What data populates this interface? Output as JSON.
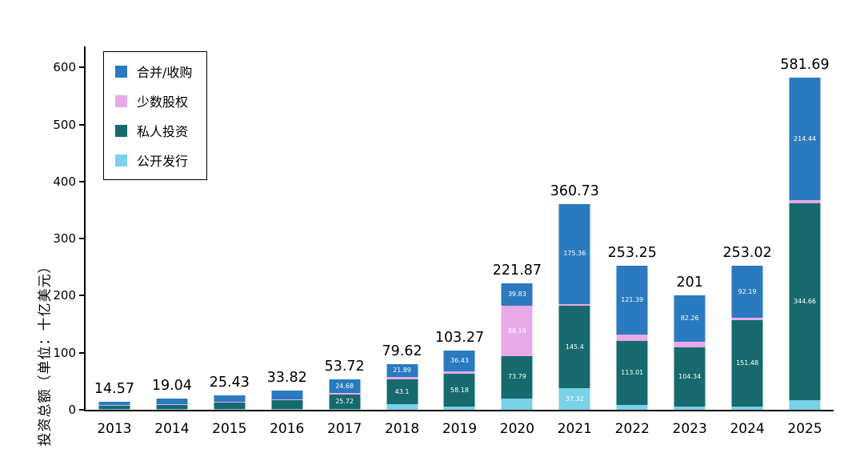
{
  "chart_data": {
    "type": "bar",
    "stacked": true,
    "title": "",
    "xlabel": "",
    "ylabel": "投资总额（单位：十亿美元）",
    "ymax": 637,
    "ylim": [
      0,
      637
    ],
    "yticks": [
      0,
      100,
      200,
      300,
      400,
      500,
      600
    ],
    "grid": false,
    "legend_position": "upper-left-inside",
    "categories": [
      "2013",
      "2014",
      "2015",
      "2016",
      "2017",
      "2018",
      "2019",
      "2020",
      "2021",
      "2022",
      "2023",
      "2024",
      "2025"
    ],
    "totals": [
      "14.57",
      "19.04",
      "25.43",
      "33.82",
      "53.72",
      "79.62",
      "103.27",
      "221.87",
      "360.73",
      "253.25",
      "201",
      "253.02",
      "581.69"
    ],
    "legend": [
      {
        "label": "合并/收购",
        "color": "#2a7abf"
      },
      {
        "label": "少数股权",
        "color": "#e8a9e9"
      },
      {
        "label": "私人投资",
        "color": "#166a6d"
      },
      {
        "label": "公开发行",
        "color": "#79d2e9"
      }
    ],
    "series": [
      {
        "name": "公开发行",
        "color": "#79d2e9",
        "values": [
          1,
          1,
          1.5,
          1.5,
          1.5,
          10,
          5,
          20.06,
          37.32,
          8,
          5,
          5,
          17
        ],
        "labels": [
          null,
          null,
          null,
          null,
          null,
          null,
          null,
          null,
          "37.32",
          null,
          null,
          null,
          null
        ]
      },
      {
        "name": "私人投资",
        "color": "#166a6d",
        "values": [
          7,
          9,
          12,
          16,
          25.72,
          43.1,
          58.18,
          73.79,
          145.4,
          113.01,
          104.34,
          151.48,
          344.66
        ],
        "labels": [
          null,
          null,
          null,
          null,
          "25.72",
          "43.1",
          "58.18",
          "73.79",
          "145.4",
          "113.01",
          "104.34",
          "151.48",
          "344.66"
        ]
      },
      {
        "name": "少数股权",
        "color": "#e8a9e9",
        "values": [
          0.5,
          0.5,
          1,
          1.3,
          1.82,
          4.63,
          3.66,
          88.19,
          2.65,
          10.85,
          9.4,
          4.35,
          5.59
        ],
        "labels": [
          null,
          null,
          null,
          null,
          null,
          null,
          null,
          "88.19",
          null,
          null,
          null,
          null,
          null
        ]
      },
      {
        "name": "合并/收购",
        "color": "#2a7abf",
        "values": [
          6.07,
          8.54,
          10.93,
          15.02,
          24.68,
          21.89,
          36.43,
          39.83,
          175.36,
          121.39,
          82.26,
          92.19,
          214.44
        ],
        "labels": [
          null,
          null,
          null,
          null,
          "24.68",
          "21.89",
          "36.43",
          "39.83",
          "175.36",
          "121.39",
          "82.26",
          "92.19",
          "214.44"
        ]
      }
    ],
    "axis_color": "#000000",
    "background_color": "#ffffff"
  }
}
